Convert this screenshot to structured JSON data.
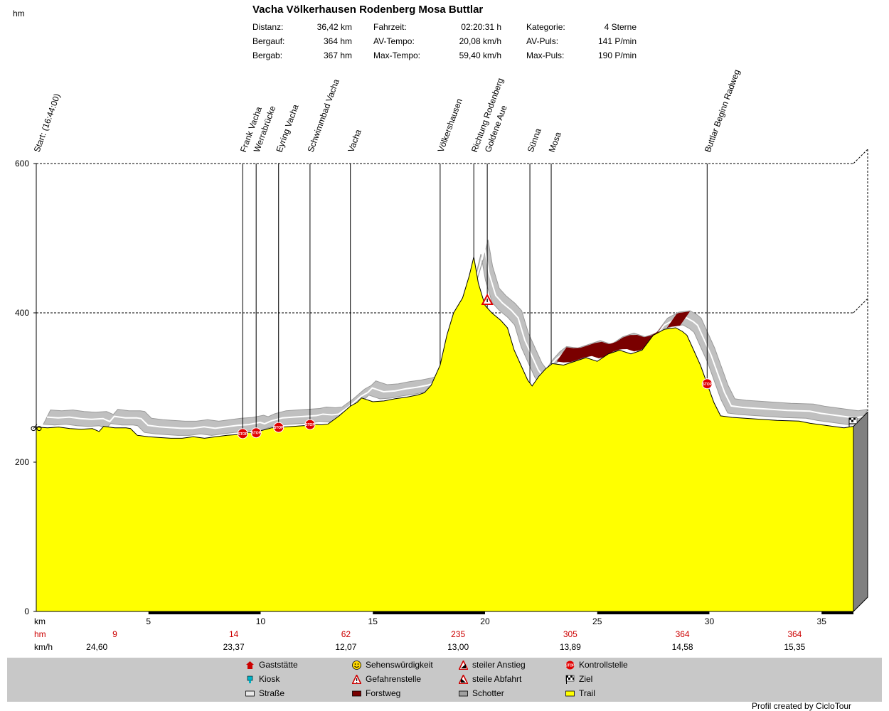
{
  "header": {
    "y_unit": "hm",
    "title": "Vacha Völkerhausen Rodenberg Mosa Buttlar",
    "stats": [
      {
        "label": "Distanz:",
        "value": "36,42 km"
      },
      {
        "label": "Bergauf:",
        "value": "364 hm"
      },
      {
        "label": "Bergab:",
        "value": "367 hm"
      },
      {
        "label": "Fahrzeit:",
        "value": "02:20:31 h"
      },
      {
        "label": "AV-Tempo:",
        "value": "20,08 km/h"
      },
      {
        "label": "Max-Tempo:",
        "value": "59,40 km/h"
      },
      {
        "label": "Kategorie:",
        "value": "4 Sterne"
      },
      {
        "label": "AV-Puls:",
        "value": "141 P/min"
      },
      {
        "label": "Max-Puls:",
        "value": "190 P/min"
      }
    ]
  },
  "chart_data": {
    "type": "area",
    "x_unit": "km",
    "y_unit": "hm",
    "xlim": [
      0,
      36.42
    ],
    "ylim": [
      0,
      600
    ],
    "x_ticks": [
      5,
      10,
      15,
      20,
      25,
      30,
      35
    ],
    "y_ticks": [
      0,
      200,
      400,
      600
    ],
    "grid": "horizontal dashed at 200, 400, 600",
    "series": [
      {
        "x": [
          0,
          0.5,
          1,
          1.5,
          2,
          2.5,
          2.8,
          3,
          3.5,
          4,
          4.2,
          4.5,
          5,
          5.5,
          6,
          6.5,
          7,
          7.5,
          8,
          8.5,
          9,
          9.5,
          9.7,
          10,
          10.5,
          11,
          11.5,
          12,
          12.3,
          12.7,
          13,
          13.5,
          14,
          14.3,
          14.5,
          15,
          15.5,
          16,
          16.5,
          17,
          17.3,
          17.6,
          18,
          18.3,
          18.6,
          19,
          19.3,
          19.5,
          19.7,
          20,
          20.3,
          20.7,
          21,
          21.3,
          21.6,
          21.9,
          22.1,
          22.4,
          22.7,
          23,
          23.5,
          24,
          24.5,
          25,
          25.5,
          26,
          26.5,
          27,
          27.5,
          28,
          28.5,
          28.8,
          29,
          29.3,
          29.6,
          29.9,
          30.2,
          30.5,
          31,
          32,
          33,
          34,
          34.5,
          35,
          35.5,
          36,
          36.42
        ],
        "y": [
          247,
          246,
          247,
          245,
          244,
          245,
          241,
          248,
          246,
          246,
          245,
          236,
          234,
          233,
          232,
          232,
          234,
          232,
          234,
          236,
          237,
          240,
          238,
          242,
          246,
          247,
          248,
          249,
          251,
          250,
          251,
          262,
          275,
          280,
          286,
          281,
          282,
          285,
          287,
          290,
          293,
          303,
          330,
          370,
          400,
          420,
          450,
          475,
          440,
          410,
          400,
          390,
          380,
          350,
          330,
          310,
          302,
          315,
          325,
          332,
          330,
          335,
          340,
          335,
          345,
          350,
          345,
          350,
          370,
          378,
          380,
          375,
          370,
          350,
          330,
          305,
          280,
          262,
          260,
          258,
          256,
          255,
          252,
          250,
          248,
          246,
          248
        ]
      }
    ],
    "waypoints": [
      {
        "label": "Start: (16:44:00)",
        "km": 0.0
      },
      {
        "label": "Frank Vacha",
        "km": 9.2
      },
      {
        "label": "Werrabrücke",
        "km": 9.8
      },
      {
        "label": "Eyring Vacha",
        "km": 10.8
      },
      {
        "label": "Schwimmbad Vacha",
        "km": 12.2
      },
      {
        "label": "Vacha",
        "km": 14.0
      },
      {
        "label": "Völkershausen",
        "km": 18.0
      },
      {
        "label": "Richtung Rodenberg",
        "km": 19.5
      },
      {
        "label": "Goldene Aue",
        "km": 20.1
      },
      {
        "label": "Sünna",
        "km": 22.0
      },
      {
        "label": "Mosa",
        "km": 22.95
      },
      {
        "label": "Buttlar Beginn Radweg",
        "km": 29.9
      }
    ],
    "stop_markers_km": [
      9.2,
      9.8,
      10.8,
      12.2,
      29.9
    ],
    "danger_marker_km": 20.1,
    "forest_segments_km": [
      [
        23.0,
        27.4
      ],
      [
        27.9,
        28.5
      ]
    ],
    "axis_rows": {
      "x_label": "km",
      "hm_label": "hm",
      "hm_values": [
        {
          "km": 3.5,
          "text": "9"
        },
        {
          "km": 8.8,
          "text": "14"
        },
        {
          "km": 13.8,
          "text": "62"
        },
        {
          "km": 18.8,
          "text": "235"
        },
        {
          "km": 23.8,
          "text": "305"
        },
        {
          "km": 28.8,
          "text": "364"
        },
        {
          "km": 33.8,
          "text": "364"
        }
      ],
      "speed_label": "km/h",
      "speed_values": [
        {
          "km": 2.7,
          "text": "24,60"
        },
        {
          "km": 8.8,
          "text": "23,37"
        },
        {
          "km": 13.8,
          "text": "12,07"
        },
        {
          "km": 18.8,
          "text": "13,00"
        },
        {
          "km": 23.8,
          "text": "13,89"
        },
        {
          "km": 28.8,
          "text": "14,58"
        },
        {
          "km": 33.8,
          "text": "15,35"
        }
      ]
    }
  },
  "colors": {
    "trail": "#ffff00",
    "road": "#c0c0c0",
    "forest": "#7a0000",
    "stop": "#e00000",
    "side": "#808080"
  },
  "legend": [
    {
      "icon": "house-icon",
      "label": "Gaststätte"
    },
    {
      "icon": "smiley-icon",
      "label": "Sehenswürdigkeit"
    },
    {
      "icon": "steep-up-icon",
      "label": "steiler Anstieg"
    },
    {
      "icon": "stop-icon",
      "label": "Kontrollstelle"
    },
    {
      "icon": "cup-icon",
      "label": "Kiosk"
    },
    {
      "icon": "danger-icon",
      "label": "Gefahrenstelle"
    },
    {
      "icon": "steep-down-icon",
      "label": "steile Abfahrt"
    },
    {
      "icon": "flag-icon",
      "label": "Ziel"
    },
    {
      "icon": "road-swatch-icon",
      "label": "Straße"
    },
    {
      "icon": "forest-swatch-icon",
      "label": "Forstweg"
    },
    {
      "icon": "gravel-swatch-icon",
      "label": "Schotter"
    },
    {
      "icon": "trail-swatch-icon",
      "label": "Trail"
    }
  ],
  "footer": "Profil created by CicloTour"
}
